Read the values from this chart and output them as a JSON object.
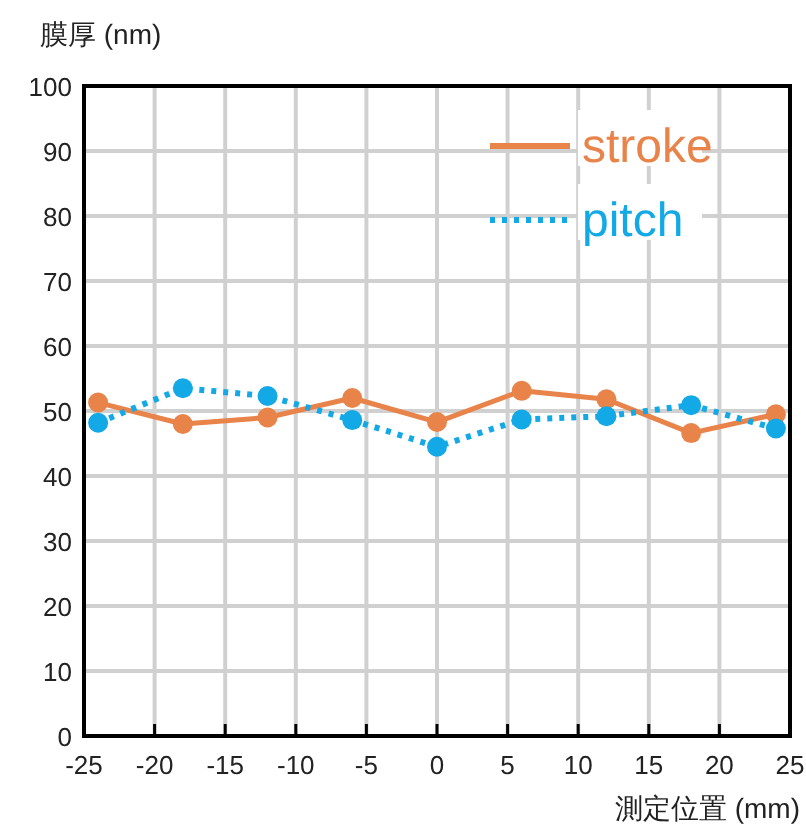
{
  "chart_data": {
    "type": "line",
    "xlabel": "測定位置 (mm)",
    "ylabel": "膜厚 (nm)",
    "xlim": [
      -25,
      25
    ],
    "xticks": [
      -25,
      -20,
      -15,
      -10,
      -5,
      0,
      5,
      10,
      15,
      20,
      25
    ],
    "ylim": [
      0,
      100
    ],
    "yticks": [
      0,
      10,
      20,
      30,
      40,
      50,
      60,
      70,
      80,
      90,
      100
    ],
    "grid": true,
    "legend": "top right",
    "marker": "circle",
    "series": [
      {
        "name": "stroke",
        "color": "#e8834a",
        "line_style": "solid",
        "x": [
          -24,
          -18,
          -12,
          -6,
          0,
          6,
          12,
          18,
          24
        ],
        "values": [
          51.3,
          48.0,
          49.0,
          52.0,
          48.3,
          53.1,
          51.8,
          46.6,
          49.5
        ]
      },
      {
        "name": "pitch",
        "color": "#13a9e6",
        "line_style": "dotted",
        "x": [
          -24,
          -18,
          -12,
          -6,
          0,
          6,
          12,
          18,
          24
        ],
        "values": [
          48.2,
          53.5,
          52.3,
          48.6,
          44.5,
          48.7,
          49.2,
          50.9,
          47.3
        ]
      }
    ]
  }
}
